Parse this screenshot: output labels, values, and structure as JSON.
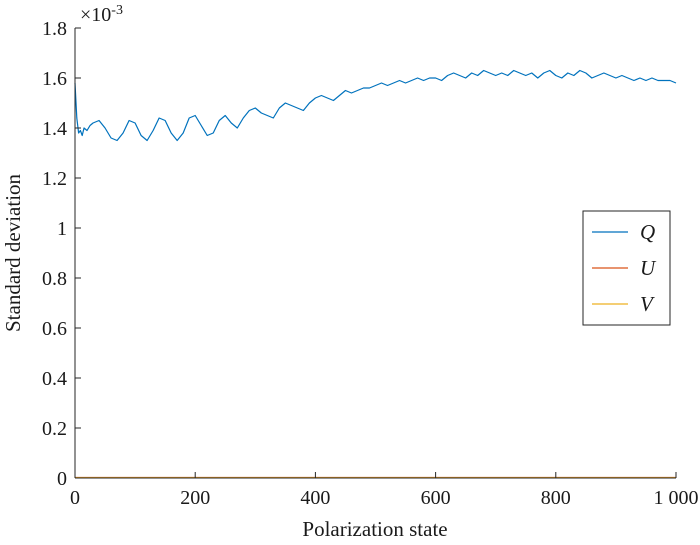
{
  "chart_data": {
    "type": "line",
    "title": "",
    "xlabel": "Polarization state",
    "ylabel": "Standard deviation",
    "y_exponent_label": "×10",
    "y_exponent_power": "-3",
    "xlim": [
      0,
      1000
    ],
    "ylim": [
      0,
      1.8
    ],
    "x_ticks": [
      0,
      200,
      400,
      600,
      800,
      1000
    ],
    "x_tick_labels": [
      "0",
      "200",
      "400",
      "600",
      "800",
      "1 000"
    ],
    "y_ticks": [
      0,
      0.2,
      0.4,
      0.6,
      0.8,
      1,
      1.2,
      1.4,
      1.6,
      1.8
    ],
    "y_tick_labels": [
      "0",
      "0.2",
      "0.4",
      "0.6",
      "0.8",
      "1",
      "1.2",
      "1.4",
      "1.6",
      "1.8"
    ],
    "grid": false,
    "legend_position": "right",
    "colors": {
      "Q": "#0072BD",
      "U": "#D95319",
      "V": "#EDB120"
    },
    "series": [
      {
        "name": "Q",
        "x": [
          0,
          3,
          6,
          9,
          12,
          15,
          20,
          25,
          30,
          40,
          50,
          60,
          70,
          80,
          90,
          100,
          110,
          120,
          130,
          140,
          150,
          160,
          170,
          180,
          190,
          200,
          210,
          220,
          230,
          240,
          250,
          260,
          270,
          280,
          290,
          300,
          310,
          320,
          330,
          340,
          350,
          360,
          370,
          380,
          390,
          400,
          410,
          420,
          430,
          440,
          450,
          460,
          470,
          480,
          490,
          500,
          510,
          520,
          530,
          540,
          550,
          560,
          570,
          580,
          590,
          600,
          610,
          620,
          630,
          640,
          650,
          660,
          670,
          680,
          690,
          700,
          710,
          720,
          730,
          740,
          750,
          760,
          770,
          780,
          790,
          800,
          810,
          820,
          830,
          840,
          850,
          860,
          870,
          880,
          890,
          900,
          910,
          920,
          930,
          940,
          950,
          960,
          970,
          980,
          990,
          1000
        ],
        "y": [
          1.58,
          1.44,
          1.38,
          1.39,
          1.37,
          1.4,
          1.39,
          1.41,
          1.42,
          1.43,
          1.4,
          1.36,
          1.35,
          1.38,
          1.43,
          1.42,
          1.37,
          1.35,
          1.39,
          1.44,
          1.43,
          1.38,
          1.35,
          1.38,
          1.44,
          1.45,
          1.41,
          1.37,
          1.38,
          1.43,
          1.45,
          1.42,
          1.4,
          1.44,
          1.47,
          1.48,
          1.46,
          1.45,
          1.44,
          1.48,
          1.5,
          1.49,
          1.48,
          1.47,
          1.5,
          1.52,
          1.53,
          1.52,
          1.51,
          1.53,
          1.55,
          1.54,
          1.55,
          1.56,
          1.56,
          1.57,
          1.58,
          1.57,
          1.58,
          1.59,
          1.58,
          1.59,
          1.6,
          1.59,
          1.6,
          1.6,
          1.59,
          1.61,
          1.62,
          1.61,
          1.6,
          1.62,
          1.61,
          1.63,
          1.62,
          1.61,
          1.62,
          1.61,
          1.63,
          1.62,
          1.61,
          1.62,
          1.6,
          1.62,
          1.63,
          1.61,
          1.6,
          1.62,
          1.61,
          1.63,
          1.62,
          1.6,
          1.61,
          1.62,
          1.61,
          1.6,
          1.61,
          1.6,
          1.59,
          1.6,
          1.59,
          1.6,
          1.59,
          1.59,
          1.59,
          1.58
        ]
      },
      {
        "name": "U",
        "x": [
          0,
          1000
        ],
        "y": [
          0.002,
          0.002
        ]
      },
      {
        "name": "V",
        "x": [
          0,
          1000
        ],
        "y": [
          0.001,
          0.001
        ]
      }
    ]
  }
}
